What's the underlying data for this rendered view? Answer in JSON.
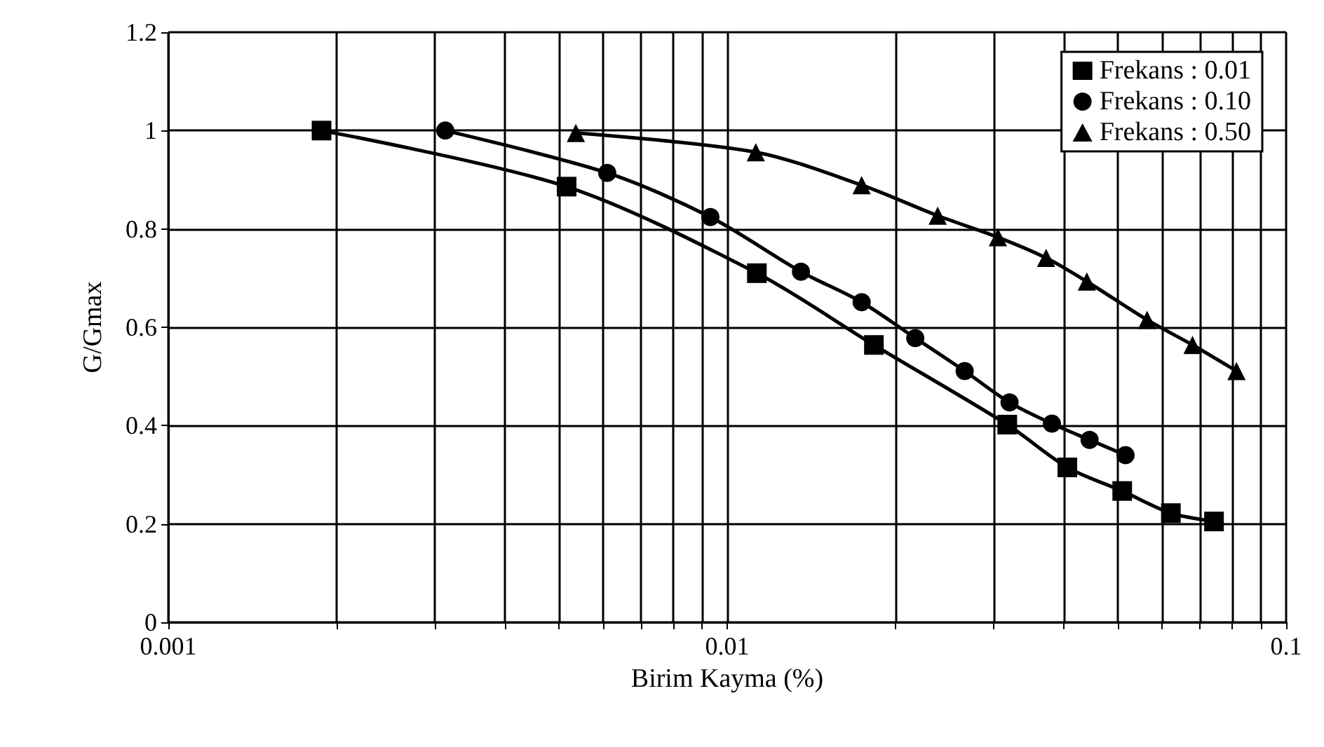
{
  "chart_data": {
    "type": "line",
    "xlabel": "Birim Kayma (%)",
    "ylabel": "G/Gmax",
    "log": "x",
    "grid": true,
    "legend": "top right",
    "line_style": "solid",
    "xlim": [
      0.001,
      0.1
    ],
    "xticks": [
      0.001,
      {
        "value": 0.002,
        "label": null
      },
      {
        "value": 0.003,
        "label": null
      },
      {
        "value": 0.004,
        "label": null
      },
      {
        "value": 0.005,
        "label": null
      },
      {
        "value": 0.006,
        "label": null
      },
      {
        "value": 0.007,
        "label": null
      },
      {
        "value": 0.008,
        "label": null
      },
      {
        "value": 0.009,
        "label": null
      },
      0.01,
      {
        "value": 0.02,
        "label": null
      },
      {
        "value": 0.03,
        "label": null
      },
      {
        "value": 0.04,
        "label": null
      },
      {
        "value": 0.05,
        "label": null
      },
      {
        "value": 0.06,
        "label": null
      },
      {
        "value": 0.07,
        "label": null
      },
      {
        "value": 0.08,
        "label": null
      },
      {
        "value": 0.09,
        "label": null
      },
      0.1
    ],
    "ylim": [
      0,
      1.2
    ],
    "yticks": [
      0,
      0.2,
      0.4,
      0.6,
      0.8,
      1,
      1.2
    ],
    "series": [
      {
        "name": "Frekans : 0.01",
        "color": "#000000",
        "marker": "square",
        "x": [
          0.00188,
          0.00516,
          0.0113,
          0.0183,
          0.0317,
          0.0406,
          0.0509,
          0.0622,
          0.0743
        ],
        "values": [
          1.0,
          0.886,
          0.71,
          0.564,
          0.402,
          0.315,
          0.267,
          0.222,
          0.205
        ]
      },
      {
        "name": "Frekans : 0.10",
        "color": "#000000",
        "marker": "circle",
        "x": [
          0.00313,
          0.0061,
          0.00933,
          0.01355,
          0.0174,
          0.0217,
          0.0266,
          0.032,
          0.0381,
          0.0445,
          0.0516
        ],
        "values": [
          1.0,
          0.914,
          0.824,
          0.713,
          0.651,
          0.578,
          0.511,
          0.447,
          0.404,
          0.371,
          0.34
        ]
      },
      {
        "name": "Frekans : 0.50",
        "color": "#000000",
        "marker": "triangle",
        "x": [
          0.00536,
          0.01125,
          0.0174,
          0.0238,
          0.0305,
          0.0372,
          0.044,
          0.0564,
          0.068,
          0.0815
        ],
        "values": [
          0.995,
          0.956,
          0.889,
          0.827,
          0.783,
          0.741,
          0.693,
          0.615,
          0.564,
          0.511
        ]
      }
    ]
  }
}
